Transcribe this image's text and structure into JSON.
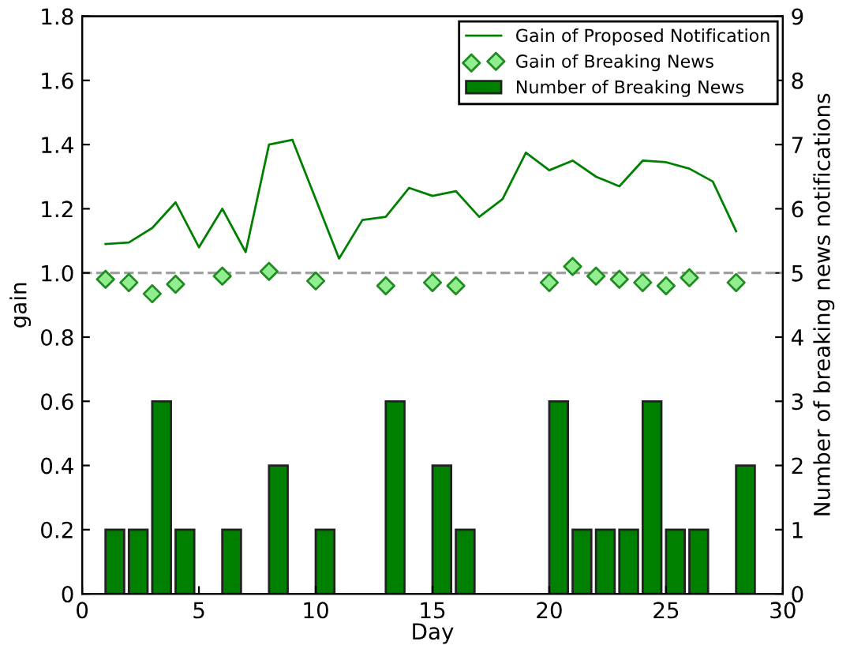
{
  "chart_data": {
    "type": "line",
    "xlabel": "Day",
    "ylabel": "gain",
    "y2label": "Number of breaking news notifications",
    "xlim": [
      0,
      30
    ],
    "xticks": [
      0,
      5,
      10,
      15,
      20,
      25,
      30
    ],
    "ylim": [
      0,
      1.8
    ],
    "yticks": [
      0,
      0.2,
      0.4,
      0.6,
      0.8,
      {
        "value": 1,
        "label": "1.0"
      },
      1.2,
      1.4,
      1.6,
      1.8
    ],
    "y2lim": [
      0,
      9
    ],
    "y2ticks": [
      0,
      1,
      2,
      3,
      4,
      5,
      6,
      7,
      8,
      9
    ],
    "grid": false,
    "legend": "top right",
    "ref_lines": [
      {
        "axis": "y",
        "value": 1.0,
        "color": "#a0a0a0",
        "line_style": "dashed"
      }
    ],
    "series": [
      {
        "name": "Gain of Proposed Notification",
        "color": "#008000",
        "marker": "none",
        "line_style": "solid",
        "x": [
          1,
          2,
          3,
          4,
          5,
          6,
          7,
          8,
          9,
          10,
          11,
          12,
          13,
          14,
          15,
          16,
          17,
          18,
          19,
          20,
          21,
          22,
          23,
          24,
          25,
          26,
          27,
          28
        ],
        "values": [
          1.09,
          1.095,
          1.14,
          1.22,
          1.08,
          1.2,
          1.065,
          1.4,
          1.415,
          1.23,
          1.045,
          1.165,
          1.175,
          1.265,
          1.24,
          1.255,
          1.175,
          1.23,
          1.375,
          1.32,
          1.35,
          1.3,
          1.27,
          1.35,
          1.345,
          1.325,
          1.285,
          1.13
        ]
      },
      {
        "name": "Gain of Breaking News",
        "type": "scatter",
        "color": "#90ee90",
        "marker": "diamond",
        "x": [
          1,
          2,
          3,
          4,
          6,
          8,
          10,
          13,
          15,
          16,
          20,
          21,
          22,
          23,
          24,
          25,
          26,
          28
        ],
        "values": [
          0.98,
          0.97,
          0.935,
          0.965,
          0.99,
          1.005,
          0.975,
          0.96,
          0.97,
          0.96,
          0.97,
          1.02,
          0.99,
          0.98,
          0.97,
          0.96,
          0.985,
          0.97
        ]
      },
      {
        "name": "Number of Breaking News",
        "type": "bar",
        "axis": "y2",
        "color": "#008000",
        "x": [
          1.4,
          2.4,
          3.4,
          4.4,
          6.4,
          8.4,
          10.4,
          13.4,
          15.4,
          16.4,
          20.4,
          21.4,
          22.4,
          23.4,
          24.4,
          25.4,
          26.4,
          28.4
        ],
        "values": [
          1,
          1,
          3,
          1,
          1,
          2,
          1,
          3,
          2,
          1,
          3,
          1,
          1,
          1,
          3,
          1,
          1,
          2
        ]
      }
    ]
  }
}
